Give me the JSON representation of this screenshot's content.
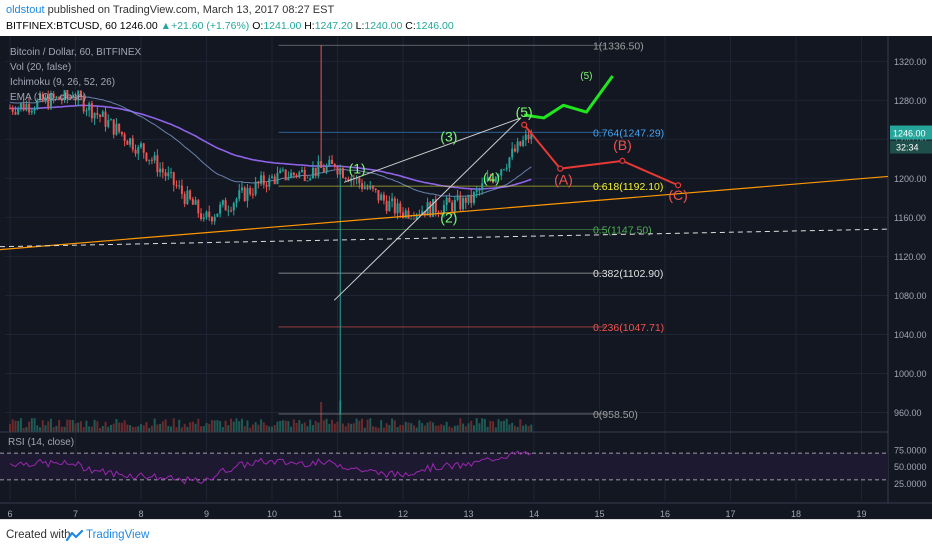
{
  "header": {
    "username": "oldstout",
    "published_text": "published on TradingView.com, March 13, 2017 08:27 EST",
    "symbol": "BITFINEX:BTCUSD, 60",
    "last_price": "1246.00",
    "change": "+21.60 (+1.76%)",
    "o_label": "O:",
    "o_value": "1241.00",
    "h_label": "H:",
    "h_value": "1247.20",
    "l_label": "L:",
    "l_value": "1240.00",
    "c_label": "C:",
    "c_value": "1246.00"
  },
  "legend": {
    "title": "Bitcoin / Dollar, 60, BITFINEX",
    "vol": "Vol (20, false)",
    "ichimoku": "Ichimoku (9, 26, 52, 26)",
    "ema": "EMA (100, close)"
  },
  "rsi_legend": "RSI (14, close)",
  "footer": {
    "created_with": "Created with",
    "brand": "TradingView"
  },
  "colors": {
    "background": "#131722",
    "grid": "#1e2433",
    "up_candle": "#26a69a",
    "down_candle": "#ef5350",
    "axis_text": "#a0a6b4",
    "bullish_projection": "#21e51e",
    "bearish_projection": "#e53935",
    "trendline": "#ff9800",
    "wave_label": "#7cfc6f",
    "correction_label": "#ef5350",
    "rsi_line": "#9c27b0",
    "fib_0618": "#f3f32b",
    "fib_0500": "#4caf50",
    "fib_0236": "#ef5350",
    "tradingview_logo": "#1e88e5"
  },
  "chart_data": {
    "type": "candlestick",
    "instrument": "BITFINEX:BTCUSD",
    "interval": "60",
    "x_ticks": [
      "6",
      "7",
      "8",
      "9",
      "10",
      "11",
      "12",
      "13",
      "14",
      "15",
      "16",
      "17",
      "18",
      "19"
    ],
    "y_ticks": [
      "1320.00",
      "1280.00",
      "1240.00",
      "1200.00",
      "1160.00",
      "1120.00",
      "1080.00",
      "1040.00",
      "1000.00",
      "960.00"
    ],
    "ylim": [
      940,
      1346
    ],
    "price_badge": "1246.00",
    "countdown_badge": "32:34",
    "candles_daily_summary": [
      {
        "day": "6",
        "open": 1272,
        "high": 1290,
        "low": 1265,
        "close": 1284
      },
      {
        "day": "7",
        "open": 1284,
        "high": 1288,
        "low": 1200,
        "close": 1232
      },
      {
        "day": "8",
        "open": 1232,
        "high": 1238,
        "low": 1150,
        "close": 1160
      },
      {
        "day": "9",
        "open": 1160,
        "high": 1210,
        "low": 1132,
        "close": 1200
      },
      {
        "day": "10",
        "open": 1200,
        "high": 1336.5,
        "low": 1200,
        "close": 1212
      },
      {
        "day": "11",
        "open": 1212,
        "high": 1215,
        "low": 958.5,
        "close": 1165
      },
      {
        "day": "12",
        "open": 1165,
        "high": 1200,
        "low": 1160,
        "close": 1175
      },
      {
        "day": "13",
        "open": 1175,
        "high": 1250,
        "low": 1170,
        "close": 1246
      }
    ],
    "fibonacci_levels": [
      {
        "label": "1(1336.50)",
        "price": 1336.5
      },
      {
        "label": "0.764(1247.29)",
        "price": 1247.29
      },
      {
        "label": "0.618(1192.10)",
        "price": 1192.1
      },
      {
        "label": "0.5(1147.50)",
        "price": 1147.5
      },
      {
        "label": "0.382(1102.90)",
        "price": 1102.9
      },
      {
        "label": "0.236(1047.71)",
        "price": 1047.71
      },
      {
        "label": "0(958.50)",
        "price": 958.5
      }
    ],
    "wave_labels": [
      {
        "text": "(1)",
        "day": 11.3,
        "price": 1205
      },
      {
        "text": "(2)",
        "day": 12.7,
        "price": 1155
      },
      {
        "text": "(3)",
        "day": 12.7,
        "price": 1238
      },
      {
        "text": "(4)",
        "day": 13.35,
        "price": 1196
      },
      {
        "text": "(5)",
        "day": 13.85,
        "price": 1263
      },
      {
        "text": "(5)",
        "day": 14.8,
        "price": 1302
      }
    ],
    "correction_labels": [
      {
        "text": "(A)",
        "day": 14.45,
        "price": 1194
      },
      {
        "text": "(B)",
        "day": 15.35,
        "price": 1229
      },
      {
        "text": "(C)",
        "day": 16.2,
        "price": 1178
      }
    ],
    "bullish_path": [
      {
        "day": 13.85,
        "price": 1265
      },
      {
        "day": 14.15,
        "price": 1262
      },
      {
        "day": 14.45,
        "price": 1275
      },
      {
        "day": 14.8,
        "price": 1268
      },
      {
        "day": 15.2,
        "price": 1305
      }
    ],
    "bearish_path": [
      {
        "day": 13.85,
        "price": 1255
      },
      {
        "day": 14.4,
        "price": 1210
      },
      {
        "day": 15.35,
        "price": 1218
      },
      {
        "day": 16.2,
        "price": 1193
      }
    ],
    "rsi": {
      "name": "RSI (14, close)",
      "y_ticks": [
        "75.0000",
        "50.0000",
        "25.0000"
      ],
      "bands": [
        70,
        30
      ]
    }
  }
}
